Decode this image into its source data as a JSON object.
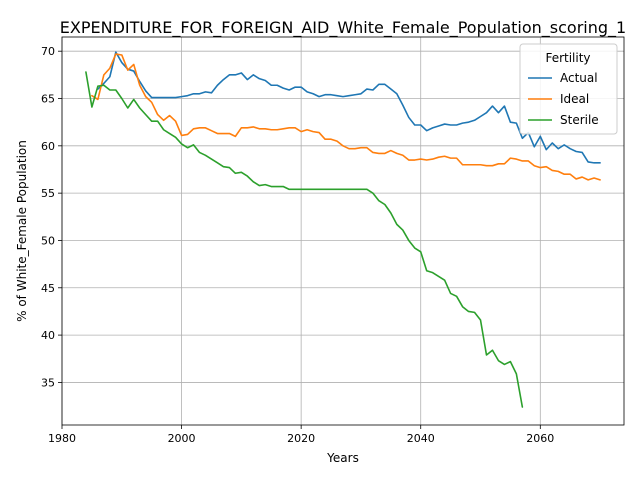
{
  "chart_data": {
    "type": "line",
    "title": "EXPENDITURE_FOR_FOREIGN_AID_White_Female_Population_scoring_1",
    "xlabel": "Years",
    "ylabel": "% of White_Female Population",
    "xlim": [
      1980,
      2074
    ],
    "ylim": [
      30.5,
      71.5
    ],
    "xticks": [
      1980,
      2000,
      2020,
      2040,
      2060
    ],
    "yticks": [
      35,
      40,
      45,
      50,
      55,
      60,
      65,
      70
    ],
    "grid": true,
    "legend": {
      "title": "Fertility",
      "placement": "top-right"
    },
    "series": [
      {
        "name": "Actual",
        "color": "#1f77b4",
        "x": [
          1986,
          1987,
          1988,
          1989,
          1990,
          1991,
          1992,
          1993,
          1994,
          1995,
          1996,
          1997,
          1998,
          1999,
          2000,
          2001,
          2002,
          2003,
          2004,
          2005,
          2006,
          2007,
          2008,
          2009,
          2010,
          2011,
          2012,
          2013,
          2014,
          2015,
          2016,
          2017,
          2018,
          2019,
          2020,
          2021,
          2022,
          2023,
          2024,
          2025,
          2026,
          2027,
          2028,
          2029,
          2030,
          2031,
          2032,
          2033,
          2034,
          2035,
          2036,
          2037,
          2038,
          2039,
          2040,
          2041,
          2042,
          2043,
          2044,
          2045,
          2046,
          2047,
          2048,
          2049,
          2050,
          2051,
          2052,
          2053,
          2054,
          2055,
          2056,
          2057,
          2058,
          2059,
          2060,
          2061,
          2062,
          2063,
          2064,
          2065,
          2066,
          2067,
          2068,
          2069,
          2070
        ],
        "y": [
          66.0,
          66.6,
          67.3,
          69.9,
          68.8,
          68.1,
          67.9,
          66.8,
          65.8,
          65.1,
          65.1,
          65.1,
          65.1,
          65.1,
          65.2,
          65.3,
          65.5,
          65.5,
          65.7,
          65.6,
          66.4,
          67.0,
          67.5,
          67.5,
          67.7,
          67.0,
          67.5,
          67.1,
          66.9,
          66.4,
          66.4,
          66.1,
          65.9,
          66.2,
          66.2,
          65.7,
          65.5,
          65.2,
          65.4,
          65.4,
          65.3,
          65.2,
          65.3,
          65.4,
          65.5,
          66.0,
          65.9,
          66.5,
          66.5,
          66.0,
          65.5,
          64.3,
          63.0,
          62.2,
          62.2,
          61.6,
          61.9,
          62.1,
          62.3,
          62.2,
          62.2,
          62.4,
          62.5,
          62.7,
          63.1,
          63.5,
          64.2,
          63.5,
          64.2,
          62.5,
          62.4,
          60.8,
          61.4,
          59.9,
          61.0,
          59.6,
          60.3,
          59.7,
          60.1,
          59.7,
          59.4,
          59.3,
          58.3,
          58.2,
          58.2
        ]
      },
      {
        "name": "Ideal",
        "color": "#ff7f0e",
        "x": [
          1985,
          1986,
          1987,
          1988,
          1989,
          1990,
          1991,
          1992,
          1993,
          1994,
          1995,
          1996,
          1997,
          1998,
          1999,
          2000,
          2001,
          2002,
          2003,
          2004,
          2005,
          2006,
          2007,
          2008,
          2009,
          2010,
          2011,
          2012,
          2013,
          2014,
          2015,
          2016,
          2017,
          2018,
          2019,
          2020,
          2021,
          2022,
          2023,
          2024,
          2025,
          2026,
          2027,
          2028,
          2029,
          2030,
          2031,
          2032,
          2033,
          2034,
          2035,
          2036,
          2037,
          2038,
          2039,
          2040,
          2041,
          2042,
          2043,
          2044,
          2045,
          2046,
          2047,
          2048,
          2049,
          2050,
          2051,
          2052,
          2053,
          2054,
          2055,
          2056,
          2057,
          2058,
          2059,
          2060,
          2061,
          2062,
          2063,
          2064,
          2065,
          2066,
          2067,
          2068,
          2069,
          2070
        ],
        "y": [
          65.3,
          64.9,
          67.5,
          68.2,
          69.7,
          69.6,
          68.0,
          68.6,
          66.4,
          65.2,
          64.6,
          63.3,
          62.7,
          63.2,
          62.6,
          61.1,
          61.2,
          61.8,
          61.9,
          61.9,
          61.6,
          61.3,
          61.3,
          61.3,
          61.0,
          61.9,
          61.9,
          62.0,
          61.8,
          61.8,
          61.7,
          61.7,
          61.8,
          61.9,
          61.9,
          61.5,
          61.7,
          61.5,
          61.4,
          60.7,
          60.7,
          60.5,
          60.0,
          59.7,
          59.7,
          59.8,
          59.8,
          59.3,
          59.2,
          59.2,
          59.5,
          59.2,
          59.0,
          58.5,
          58.5,
          58.6,
          58.5,
          58.6,
          58.8,
          58.9,
          58.7,
          58.7,
          58.0,
          58.0,
          58.0,
          58.0,
          57.9,
          57.9,
          58.1,
          58.1,
          58.7,
          58.6,
          58.4,
          58.4,
          57.9,
          57.7,
          57.8,
          57.4,
          57.3,
          57.0,
          57.0,
          56.5,
          56.7,
          56.4,
          56.6,
          56.4
        ]
      },
      {
        "name": "Sterile",
        "color": "#2ca02c",
        "x": [
          1984,
          1985,
          1986,
          1987,
          1988,
          1989,
          1990,
          1991,
          1992,
          1993,
          1994,
          1995,
          1996,
          1997,
          1998,
          1999,
          2000,
          2001,
          2002,
          2003,
          2004,
          2005,
          2006,
          2007,
          2008,
          2009,
          2010,
          2011,
          2012,
          2013,
          2014,
          2015,
          2016,
          2017,
          2018,
          2019,
          2020,
          2021,
          2022,
          2023,
          2024,
          2025,
          2026,
          2027,
          2028,
          2029,
          2030,
          2031,
          2032,
          2033,
          2034,
          2035,
          2036,
          2037,
          2038,
          2039,
          2040,
          2041,
          2042,
          2043,
          2044,
          2045,
          2046,
          2047,
          2048,
          2049,
          2050,
          2051,
          2052,
          2053,
          2054,
          2055,
          2056,
          2057
        ],
        "y": [
          67.8,
          64.1,
          66.3,
          66.4,
          65.9,
          65.9,
          65.0,
          64.0,
          64.9,
          64.0,
          63.3,
          62.6,
          62.6,
          61.7,
          61.3,
          60.9,
          60.2,
          59.8,
          60.1,
          59.3,
          59.0,
          58.6,
          58.2,
          57.8,
          57.7,
          57.1,
          57.2,
          56.8,
          56.2,
          55.8,
          55.9,
          55.7,
          55.7,
          55.7,
          55.4,
          55.4,
          55.4,
          55.4,
          55.4,
          55.4,
          55.4,
          55.4,
          55.4,
          55.4,
          55.4,
          55.4,
          55.4,
          55.4,
          55.0,
          54.2,
          53.8,
          52.9,
          51.7,
          51.1,
          50.0,
          49.2,
          48.8,
          46.8,
          46.6,
          46.2,
          45.8,
          44.4,
          44.1,
          43.0,
          42.5,
          42.4,
          41.6,
          37.9,
          38.4,
          37.3,
          36.9,
          37.2,
          35.9,
          32.4
        ]
      }
    ]
  }
}
